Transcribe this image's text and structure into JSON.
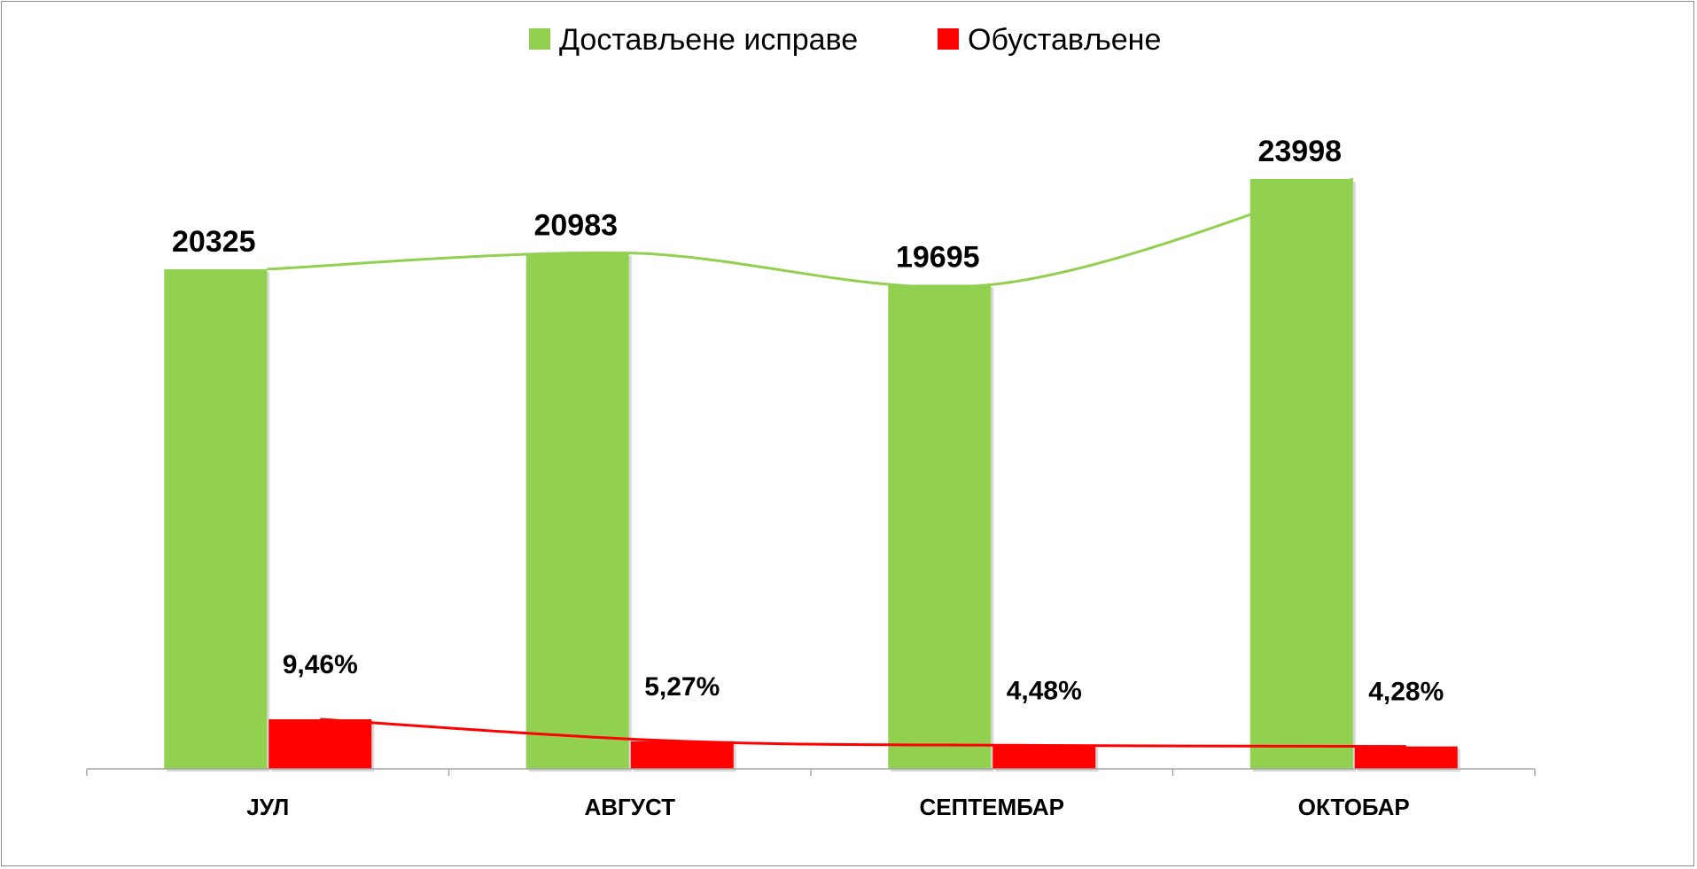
{
  "chart_data": {
    "type": "bar",
    "title": "",
    "xlabel": "",
    "ylabel": "",
    "categories": [
      "ЈУЛ",
      "АВГУСТ",
      "СЕПТЕМБАР",
      "ОКТОБАР"
    ],
    "series": [
      {
        "name": "Достављене исправе",
        "values": [
          20325,
          20983,
          19695,
          23998
        ],
        "labels": [
          "20325",
          "20983",
          "19695",
          "23998"
        ],
        "color": "#92d050"
      },
      {
        "name": "Обустављене",
        "values": [
          9.46,
          5.27,
          4.48,
          4.28
        ],
        "labels": [
          "9,46%",
          "5,27%",
          "4,48%",
          "4,28%"
        ],
        "color": "#ff0000"
      }
    ],
    "trendlines": true,
    "grid": false,
    "legend": "top-center"
  }
}
